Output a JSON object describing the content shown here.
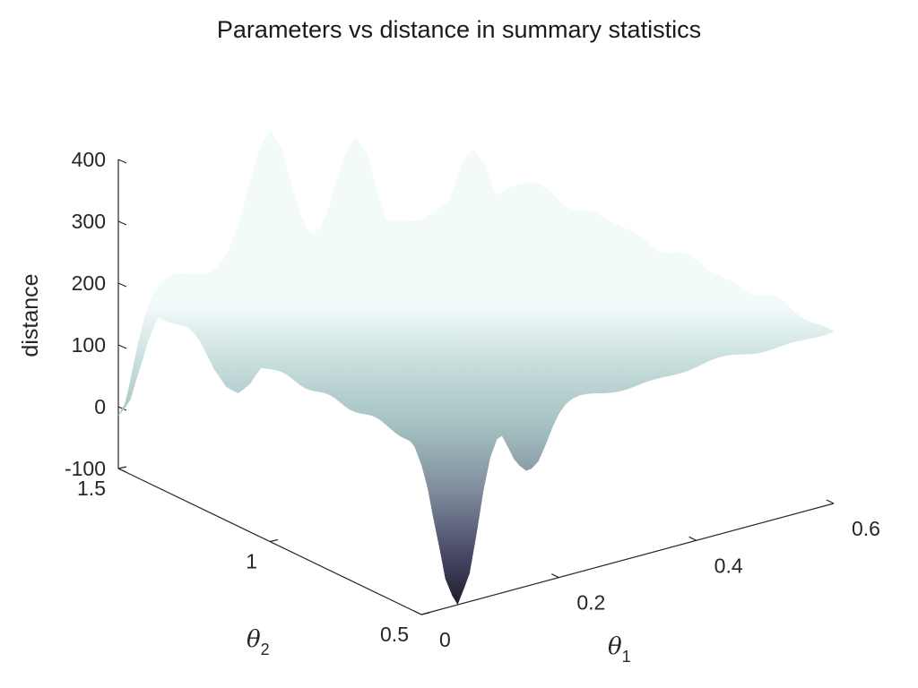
{
  "chart_data": {
    "type": "surface",
    "title": "Parameters vs distance in summary statistics",
    "xlabel": "θ1",
    "ylabel": "θ2",
    "zlabel": "distance",
    "xlim": [
      0,
      0.6
    ],
    "ylim": [
      0.5,
      1.5
    ],
    "zlim": [
      -100,
      400
    ],
    "xticks": [
      0,
      0.2,
      0.4,
      0.6
    ],
    "yticks": [
      0.5,
      1,
      1.5
    ],
    "zticks": [
      -100,
      0,
      100,
      200,
      300,
      400
    ],
    "xtick_labels": [
      "0",
      "0.2",
      "0.4",
      "0.6"
    ],
    "ytick_labels": [
      "0.5",
      "1",
      "1.5"
    ],
    "ztick_labels": [
      "-100",
      "0",
      "100",
      "200",
      "300",
      "400"
    ],
    "base_distance": 180,
    "colormap": [
      "#141420",
      "#4a4a68",
      "#7f8c9c",
      "#a3bfc0",
      "#c4dcda",
      "#f2fafa"
    ],
    "features": [
      {
        "theta1": 0.0,
        "theta2": 1.5,
        "distance": -10
      },
      {
        "theta1": 0.02,
        "theta2": 1.15,
        "distance": 100
      },
      {
        "theta1": 0.06,
        "theta2": 0.52,
        "distance": -100
      },
      {
        "theta1": 0.12,
        "theta2": 0.92,
        "distance": 210
      },
      {
        "theta1": 0.18,
        "theta2": 0.85,
        "distance": 370
      },
      {
        "theta1": 0.2,
        "theta2": 1.45,
        "distance": 395
      },
      {
        "theta1": 0.28,
        "theta2": 1.35,
        "distance": 390
      },
      {
        "theta1": 0.16,
        "theta2": 0.52,
        "distance": 80
      },
      {
        "theta1": 0.3,
        "theta2": 0.9,
        "distance": 260
      },
      {
        "theta1": 0.42,
        "theta2": 1.28,
        "distance": 340
      },
      {
        "theta1": 0.44,
        "theta2": 1.02,
        "distance": 265
      },
      {
        "theta1": 0.42,
        "theta2": 0.78,
        "distance": 220
      },
      {
        "theta1": 0.5,
        "theta2": 0.8,
        "distance": 205
      },
      {
        "theta1": 0.55,
        "theta2": 0.95,
        "distance": 200
      }
    ]
  }
}
